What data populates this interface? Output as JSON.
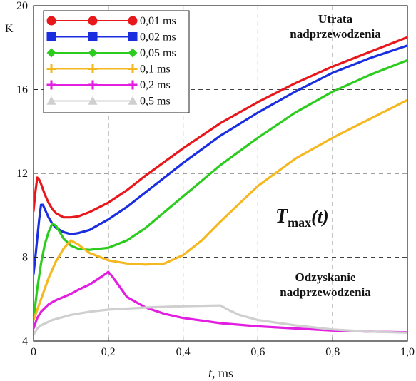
{
  "chart_data": {
    "type": "line",
    "xlabel_italic": "t",
    "xlabel_rest": ", ms",
    "ylabel": "K",
    "xlim": [
      0,
      1.0
    ],
    "ylim": [
      4,
      20
    ],
    "x_ticks": [
      0,
      0.2,
      0.4,
      0.6,
      0.8,
      1.0
    ],
    "x_tick_labels": [
      "0",
      "0,2",
      "0,4",
      "0,6",
      "0,8",
      "1,0"
    ],
    "y_ticks": [
      4,
      8,
      12,
      16,
      20
    ],
    "y_tick_labels": [
      "4",
      "8",
      "12",
      "16",
      "20"
    ],
    "grid": "dashed",
    "legend_position": "top-left",
    "annotations": {
      "top_line1": "Utrata",
      "top_line2": "nadprzewodzenia",
      "bottom_line1": "Odzyskanie",
      "bottom_line2": "nadprzewodzenia",
      "center_T": "T",
      "center_sub": "max",
      "center_rest": "(t)"
    },
    "series": [
      {
        "name": "0,01 ms",
        "color": "#e8171c",
        "marker": "circle",
        "x": [
          0,
          0.005,
          0.01,
          0.015,
          0.02,
          0.03,
          0.04,
          0.05,
          0.06,
          0.08,
          0.1,
          0.12,
          0.15,
          0.2,
          0.25,
          0.3,
          0.4,
          0.5,
          0.6,
          0.7,
          0.8,
          0.9,
          1.0
        ],
        "y": [
          10.2,
          11.1,
          11.8,
          11.7,
          11.5,
          11.0,
          10.6,
          10.3,
          10.1,
          9.9,
          9.9,
          9.95,
          10.15,
          10.6,
          11.2,
          11.9,
          13.2,
          14.4,
          15.4,
          16.3,
          17.1,
          17.8,
          18.5
        ]
      },
      {
        "name": "0,02 ms",
        "color": "#1a2ee0",
        "marker": "square",
        "x": [
          0,
          0.005,
          0.01,
          0.015,
          0.02,
          0.025,
          0.03,
          0.04,
          0.05,
          0.06,
          0.08,
          0.1,
          0.12,
          0.15,
          0.2,
          0.25,
          0.3,
          0.4,
          0.5,
          0.6,
          0.7,
          0.8,
          0.9,
          1.0
        ],
        "y": [
          7.2,
          8.0,
          8.9,
          9.8,
          10.5,
          10.5,
          10.3,
          9.9,
          9.6,
          9.4,
          9.2,
          9.1,
          9.15,
          9.3,
          9.8,
          10.4,
          11.1,
          12.5,
          13.8,
          14.9,
          15.9,
          16.8,
          17.5,
          18.1
        ]
      },
      {
        "name": "0,05 ms",
        "color": "#2ccc1f",
        "marker": "diamond",
        "x": [
          0,
          0.01,
          0.02,
          0.03,
          0.04,
          0.05,
          0.06,
          0.07,
          0.08,
          0.1,
          0.12,
          0.15,
          0.2,
          0.25,
          0.3,
          0.4,
          0.5,
          0.6,
          0.7,
          0.8,
          0.9,
          1.0
        ],
        "y": [
          5.0,
          6.5,
          7.7,
          8.6,
          9.2,
          9.6,
          9.5,
          9.2,
          8.9,
          8.55,
          8.4,
          8.35,
          8.45,
          8.8,
          9.4,
          10.9,
          12.4,
          13.7,
          14.9,
          15.9,
          16.7,
          17.4
        ]
      },
      {
        "name": "0,1 ms",
        "color": "#f5b820",
        "marker": "plus",
        "x": [
          0,
          0.02,
          0.04,
          0.06,
          0.08,
          0.1,
          0.12,
          0.15,
          0.2,
          0.25,
          0.3,
          0.35,
          0.4,
          0.45,
          0.5,
          0.6,
          0.7,
          0.8,
          0.9,
          1.0
        ],
        "y": [
          5.0,
          6.0,
          7.0,
          7.8,
          8.4,
          8.8,
          8.6,
          8.2,
          7.85,
          7.7,
          7.65,
          7.7,
          8.1,
          8.8,
          9.7,
          11.4,
          12.7,
          13.7,
          14.6,
          15.5
        ]
      },
      {
        "name": "0,2 ms",
        "color": "#e21ee0",
        "marker": "plus",
        "x": [
          0,
          0.01,
          0.02,
          0.04,
          0.06,
          0.08,
          0.1,
          0.12,
          0.15,
          0.18,
          0.2,
          0.21,
          0.23,
          0.25,
          0.3,
          0.35,
          0.4,
          0.5,
          0.6,
          0.7,
          0.8,
          0.9,
          1.0
        ],
        "y": [
          4.6,
          5.1,
          5.4,
          5.75,
          5.95,
          6.1,
          6.25,
          6.45,
          6.7,
          7.05,
          7.3,
          7.1,
          6.6,
          6.1,
          5.6,
          5.3,
          5.1,
          4.85,
          4.7,
          4.6,
          4.5,
          4.45,
          4.42
        ]
      },
      {
        "name": "0,5 ms",
        "color": "#cfcfcf",
        "marker": "triangle",
        "x": [
          0,
          0.01,
          0.02,
          0.05,
          0.1,
          0.15,
          0.2,
          0.25,
          0.3,
          0.35,
          0.4,
          0.45,
          0.5,
          0.52,
          0.55,
          0.6,
          0.7,
          0.8,
          0.9,
          1.0
        ],
        "y": [
          4.3,
          4.6,
          4.75,
          5.0,
          5.25,
          5.4,
          5.5,
          5.55,
          5.6,
          5.63,
          5.66,
          5.68,
          5.7,
          5.5,
          5.25,
          5.0,
          4.75,
          4.55,
          4.45,
          4.4
        ]
      }
    ]
  }
}
